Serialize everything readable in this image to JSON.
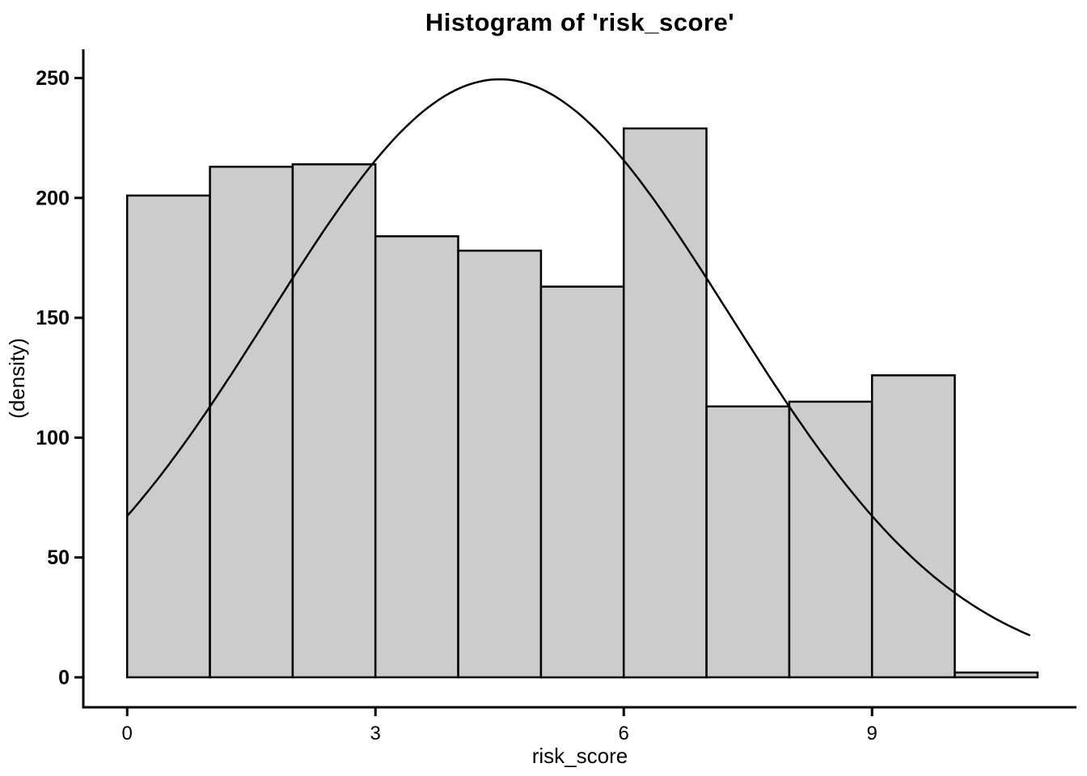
{
  "chart_data": {
    "type": "bar",
    "subtype": "histogram",
    "title": "Histogram of 'risk_score'",
    "xlabel": "risk_score",
    "ylabel": "(density)",
    "bin_edges": [
      0,
      1,
      2,
      3,
      4,
      5,
      6,
      7,
      8,
      9,
      10,
      11
    ],
    "categories": [
      "0-1",
      "1-2",
      "2-3",
      "3-4",
      "4-5",
      "5-6",
      "6-7",
      "7-8",
      "8-9",
      "9-10",
      "10-11"
    ],
    "values": [
      201,
      213,
      214,
      184,
      178,
      163,
      229,
      113,
      115,
      126,
      2
    ],
    "x_ticks": [
      0,
      3,
      6,
      9
    ],
    "y_ticks": [
      0,
      50,
      100,
      150,
      200,
      250
    ],
    "xlim": [
      -0.53,
      11.47
    ],
    "ylim": [
      -12.5,
      262
    ],
    "grid": false,
    "legend": false,
    "colors": {
      "bar_fill": "#cccccc",
      "bar_edge": "#000000",
      "curve": "#000000",
      "axis": "#000000",
      "text": "#000000",
      "background": "#ffffff"
    },
    "curve": {
      "type": "normal-fit",
      "mean": 4.5,
      "sd": 2.78,
      "peak": 249.5,
      "x_start": 0,
      "x_end": 10.9
    }
  }
}
